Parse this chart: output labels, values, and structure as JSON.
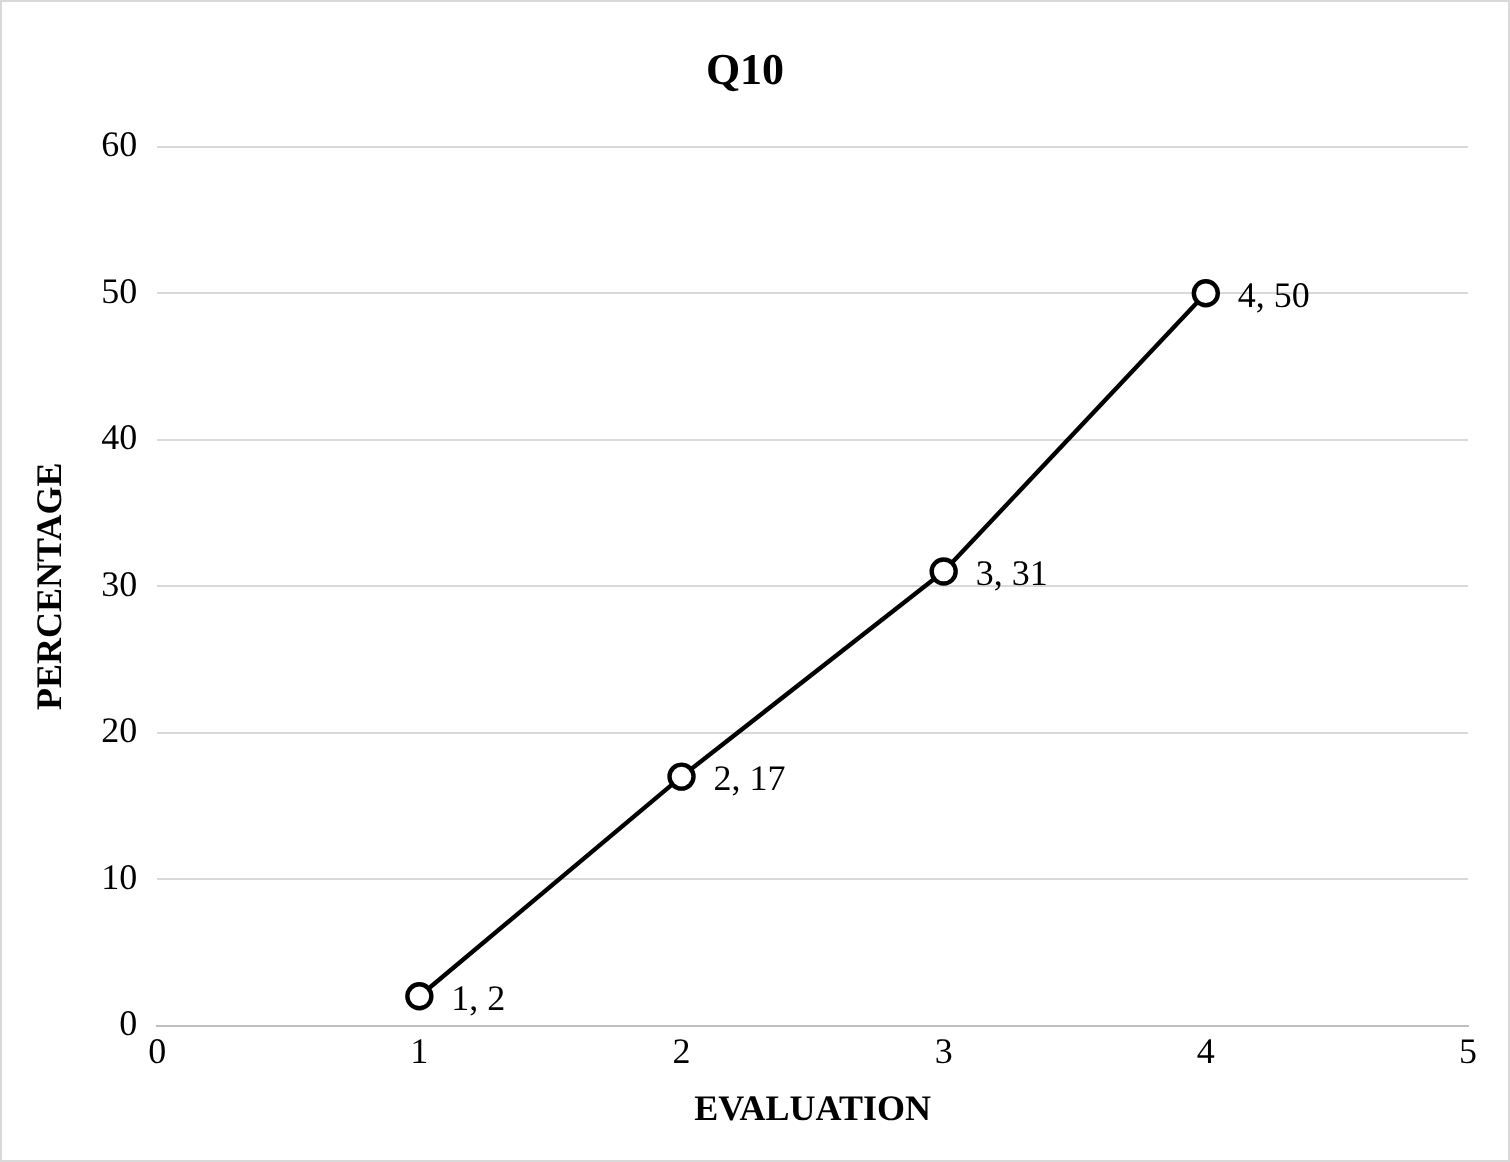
{
  "chart_data": {
    "type": "line",
    "title": "Q10",
    "xlabel": "EVALUATION",
    "ylabel": "PERCENTAGE",
    "x": [
      1,
      2,
      3,
      4
    ],
    "series": [
      {
        "color": "#000000",
        "values": [
          2,
          17,
          31,
          50
        ],
        "value_labels": [
          "1, 2",
          "2, 17",
          "3, 31",
          "4, 50"
        ]
      }
    ],
    "xlim": [
      0,
      5
    ],
    "xticks": [
      0,
      1,
      2,
      3,
      4,
      5
    ],
    "ylim": [
      0,
      60
    ],
    "yticks": [
      0,
      10,
      20,
      30,
      40,
      50,
      60
    ],
    "grid": "y",
    "legend": false,
    "marker": "circle",
    "line_style": "solid"
  }
}
